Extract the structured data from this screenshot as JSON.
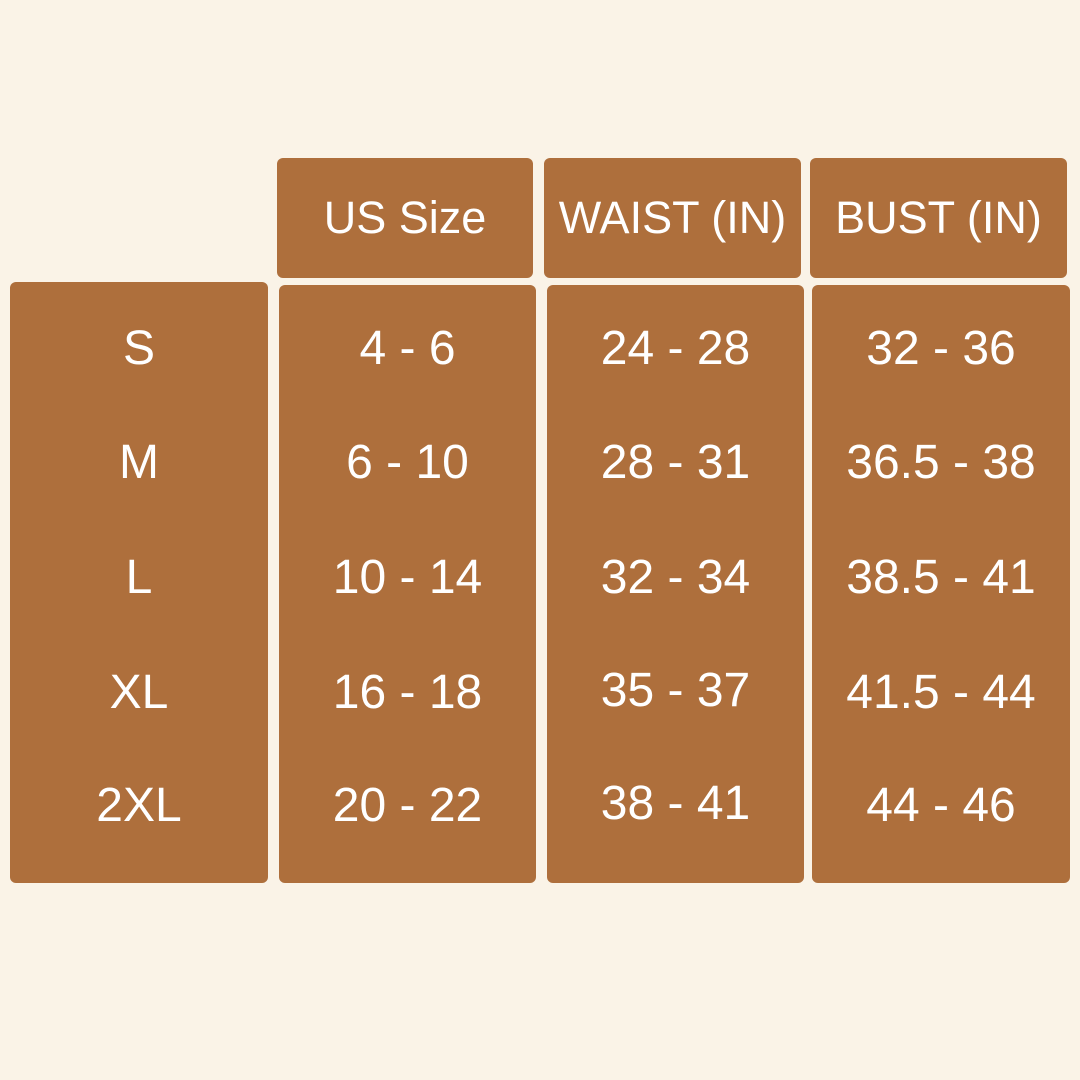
{
  "colors": {
    "background": "#FAF3E7",
    "box": "#AE6F3C",
    "text": "#FFFFFF"
  },
  "headers": [
    "US Size",
    "WAIST (IN)",
    "BUST (IN)"
  ],
  "sizes": [
    "S",
    "M",
    "L",
    "XL",
    "2XL"
  ],
  "us_size": [
    "4 - 6",
    "6 - 10",
    "10 - 14",
    "16 - 18",
    "20 - 22"
  ],
  "waist": [
    "24 - 28",
    "28 - 31",
    "32 - 34",
    "35 - 37",
    "38 - 41"
  ],
  "bust": [
    "32 - 36",
    "36.5 - 38",
    "38.5 - 41",
    "41.5 - 44",
    "44 - 46"
  ]
}
